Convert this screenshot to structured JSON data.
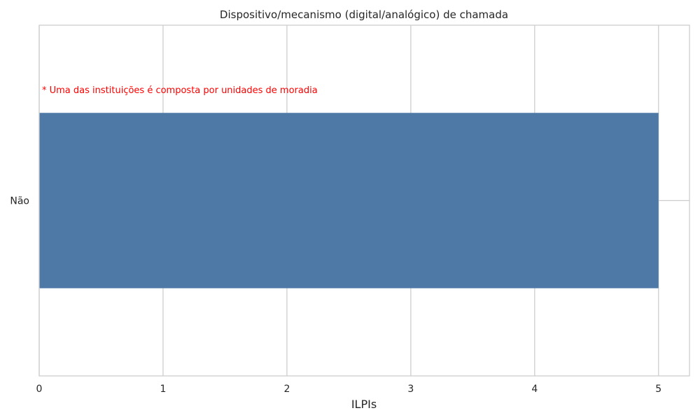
{
  "chart_data": {
    "type": "bar",
    "orientation": "horizontal",
    "title": "Dispositivo/mecanismo (digital/analógico) de chamada",
    "xlabel": "ILPIs",
    "ylabel": "",
    "categories": [
      "Não"
    ],
    "values": [
      5
    ],
    "xlim": [
      0,
      5.25
    ],
    "xticks": [
      0,
      1,
      2,
      3,
      4,
      5
    ],
    "xtick_labels": [
      "0",
      "1",
      "2",
      "3",
      "4",
      "5"
    ],
    "grid": true,
    "bar_color": "#4e79a7",
    "annotation": {
      "text": "* Uma das instituições é composta por unidades de moradia",
      "color": "#ff0000"
    }
  }
}
